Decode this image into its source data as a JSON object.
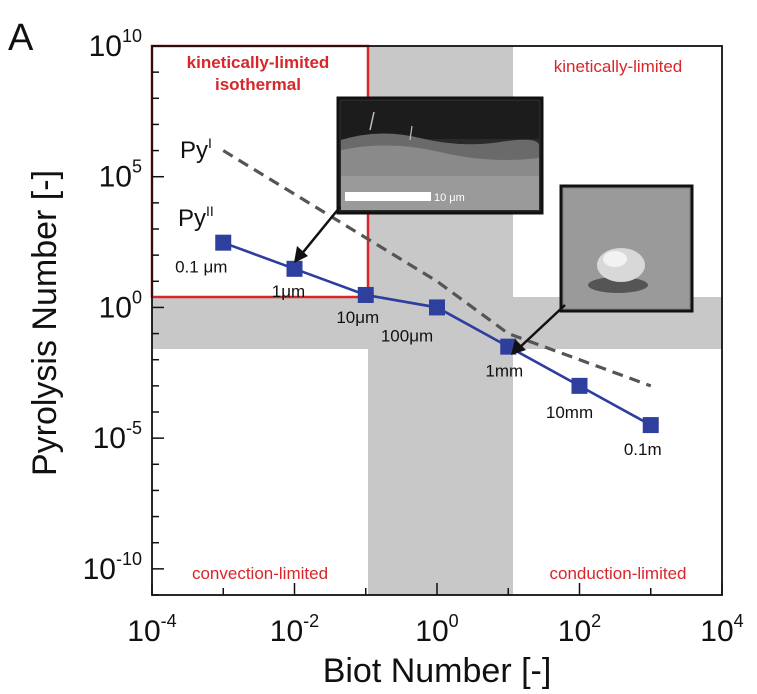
{
  "panel_label": "A",
  "colors": {
    "series": "#2e3d9f",
    "marker": "#2f3f9e",
    "dashed": "#555555",
    "band": "#c8c8c8",
    "region_text": "#d9262a",
    "frame": "#111111"
  },
  "chart_data": {
    "type": "line",
    "xlabel": "Biot Number [-]",
    "ylabel": "Pyrolysis Number [-]",
    "xscale": "log",
    "yscale": "log",
    "xlim": [
      0.0001,
      10000
    ],
    "ylim": [
      1e-11,
      10000000000.0
    ],
    "x_ticks": [
      {
        "base": "10",
        "exp": "-4"
      },
      {
        "base": "10",
        "exp": "-2"
      },
      {
        "base": "10",
        "exp": "0"
      },
      {
        "base": "10",
        "exp": "2"
      },
      {
        "base": "10",
        "exp": "4"
      }
    ],
    "y_ticks": [
      {
        "base": "10",
        "exp": "10"
      },
      {
        "base": "10",
        "exp": "5"
      },
      {
        "base": "10",
        "exp": "0"
      },
      {
        "base": "10",
        "exp": "-5"
      },
      {
        "base": "10",
        "exp": "-10"
      }
    ],
    "grid": false,
    "series": [
      {
        "name": "Py II",
        "style": "solid-square-markers",
        "x": [
          0.001,
          0.01,
          0.1,
          1,
          10,
          100,
          1000
        ],
        "y": [
          300,
          30,
          3,
          1,
          0.0316,
          0.001,
          3.16e-05
        ],
        "point_labels": [
          "0.1 μm",
          "1μm",
          "10μm",
          "100μm",
          "1mm",
          "10mm",
          "0.1m"
        ]
      },
      {
        "name": "Py I",
        "style": "dashed",
        "x": [
          0.001,
          1,
          10,
          1000
        ],
        "y": [
          1000000,
          10,
          0.1,
          0.001
        ]
      }
    ],
    "annotations": {
      "regions": [
        "kinetically-limited isothermal",
        "kinetically-limited",
        "convection-limited",
        "conduction-limited"
      ],
      "curve_labels": [
        {
          "base": "Py",
          "sup": "I"
        },
        {
          "base": "Py",
          "sup": "II"
        }
      ],
      "scale_bar": "10 μm"
    }
  }
}
